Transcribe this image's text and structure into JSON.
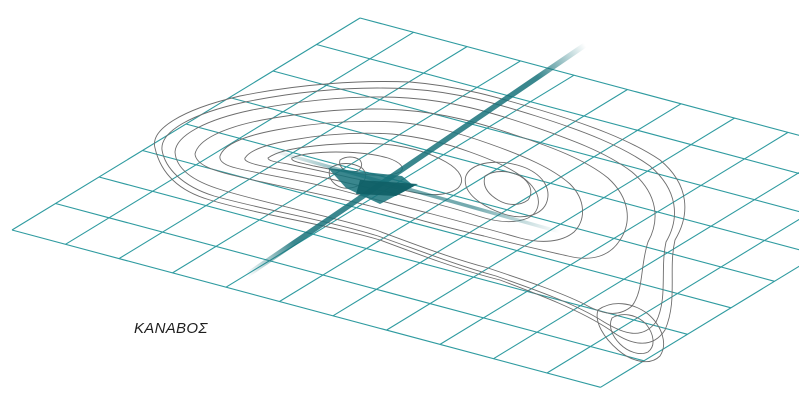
{
  "label": "ΚΑΝΑΒΟΣ",
  "colors": {
    "grid": "#2f9ba0",
    "axis": "#17727a",
    "contour": "#6d6d6d",
    "background": "#ffffff"
  }
}
